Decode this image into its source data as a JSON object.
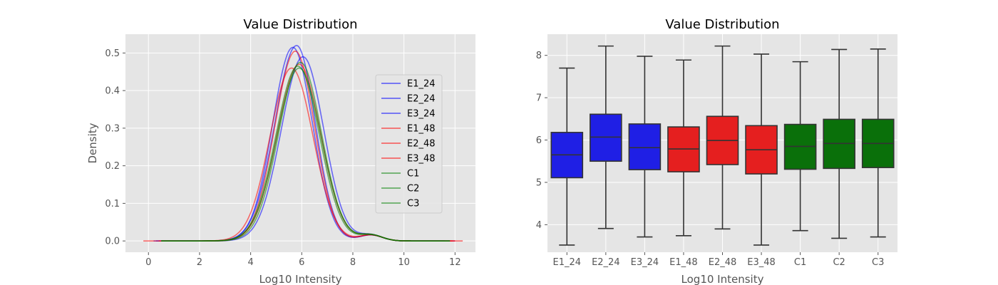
{
  "chart_data": [
    {
      "type": "line",
      "title": "Value Distribution",
      "xlabel": "Log10 Intensity",
      "ylabel": "Density",
      "xlim": [
        -0.9,
        12.8
      ],
      "ylim": [
        -0.03,
        0.55
      ],
      "xticks": [
        0,
        2,
        4,
        6,
        8,
        10,
        12
      ],
      "yticks": [
        0.0,
        0.1,
        0.2,
        0.3,
        0.4,
        0.5
      ],
      "grid": true,
      "legend": "right",
      "series": [
        {
          "name": "E1_24",
          "color": "#0000ff",
          "peak_x": 5.8,
          "peak_y": 0.52,
          "sd_left": 0.85,
          "sd_right": 0.73,
          "xmin": 0.2,
          "xmax": 11.8
        },
        {
          "name": "E2_24",
          "color": "#0000ff",
          "peak_x": 5.65,
          "peak_y": 0.515,
          "sd_left": 0.79,
          "sd_right": 0.77,
          "xmin": 0.3,
          "xmax": 11.6
        },
        {
          "name": "E3_24",
          "color": "#0000ff",
          "peak_x": 6.05,
          "peak_y": 0.49,
          "sd_left": 0.85,
          "sd_right": 0.81,
          "xmin": 0.5,
          "xmax": 12.0
        },
        {
          "name": "E1_48",
          "color": "#ff0000",
          "peak_x": 5.75,
          "peak_y": 0.505,
          "sd_left": 0.8,
          "sd_right": 0.75,
          "xmin": -0.2,
          "xmax": 12.3
        },
        {
          "name": "E2_48",
          "color": "#ff0000",
          "peak_x": 5.9,
          "peak_y": 0.47,
          "sd_left": 0.86,
          "sd_right": 0.84,
          "xmin": 0.4,
          "xmax": 12.0
        },
        {
          "name": "E3_48",
          "color": "#ff0000",
          "peak_x": 5.6,
          "peak_y": 0.46,
          "sd_left": 0.84,
          "sd_right": 0.84,
          "xmin": 0.5,
          "xmax": 11.9
        },
        {
          "name": "C1",
          "color": "#008000",
          "peak_x": 5.95,
          "peak_y": 0.475,
          "sd_left": 0.85,
          "sd_right": 0.82,
          "xmin": 0.5,
          "xmax": 11.8
        },
        {
          "name": "C2",
          "color": "#008000",
          "peak_x": 5.85,
          "peak_y": 0.465,
          "sd_left": 0.86,
          "sd_right": 0.84,
          "xmin": 0.5,
          "xmax": 11.8
        },
        {
          "name": "C3",
          "color": "#008000",
          "peak_x": 5.9,
          "peak_y": 0.46,
          "sd_left": 0.87,
          "sd_right": 0.85,
          "xmin": 0.5,
          "xmax": 11.8
        }
      ]
    },
    {
      "type": "box",
      "title": "Value Distribution",
      "xlabel": "Log10 Intensity",
      "ylabel": "",
      "ylim": [
        3.35,
        8.5
      ],
      "yticks": [
        4,
        5,
        6,
        7,
        8
      ],
      "grid": true,
      "categories": [
        "E1_24",
        "E2_24",
        "E3_24",
        "E1_48",
        "E2_48",
        "E3_48",
        "C1",
        "C2",
        "C3"
      ],
      "boxes": [
        {
          "name": "E1_24",
          "color": "#1f1fe5",
          "whisker_low": 3.52,
          "q1": 5.11,
          "median": 5.65,
          "q3": 6.18,
          "whisker_high": 7.7
        },
        {
          "name": "E2_24",
          "color": "#1f1fe5",
          "whisker_low": 3.91,
          "q1": 5.5,
          "median": 6.07,
          "q3": 6.61,
          "whisker_high": 8.22
        },
        {
          "name": "E3_24",
          "color": "#1f1fe5",
          "whisker_low": 3.71,
          "q1": 5.3,
          "median": 5.82,
          "q3": 6.38,
          "whisker_high": 7.98
        },
        {
          "name": "E1_48",
          "color": "#e51f1f",
          "whisker_low": 3.74,
          "q1": 5.25,
          "median": 5.79,
          "q3": 6.31,
          "whisker_high": 7.89
        },
        {
          "name": "E2_48",
          "color": "#e51f1f",
          "whisker_low": 3.9,
          "q1": 5.42,
          "median": 5.99,
          "q3": 6.56,
          "whisker_high": 8.22
        },
        {
          "name": "E3_48",
          "color": "#e51f1f",
          "whisker_low": 3.52,
          "q1": 5.2,
          "median": 5.77,
          "q3": 6.34,
          "whisker_high": 8.03
        },
        {
          "name": "C1",
          "color": "#0a700a",
          "whisker_low": 3.86,
          "q1": 5.31,
          "median": 5.85,
          "q3": 6.37,
          "whisker_high": 7.85
        },
        {
          "name": "C2",
          "color": "#0a700a",
          "whisker_low": 3.68,
          "q1": 5.33,
          "median": 5.92,
          "q3": 6.49,
          "whisker_high": 8.14
        },
        {
          "name": "C3",
          "color": "#0a700a",
          "whisker_low": 3.71,
          "q1": 5.35,
          "median": 5.92,
          "q3": 6.49,
          "whisker_high": 8.15
        }
      ]
    }
  ]
}
